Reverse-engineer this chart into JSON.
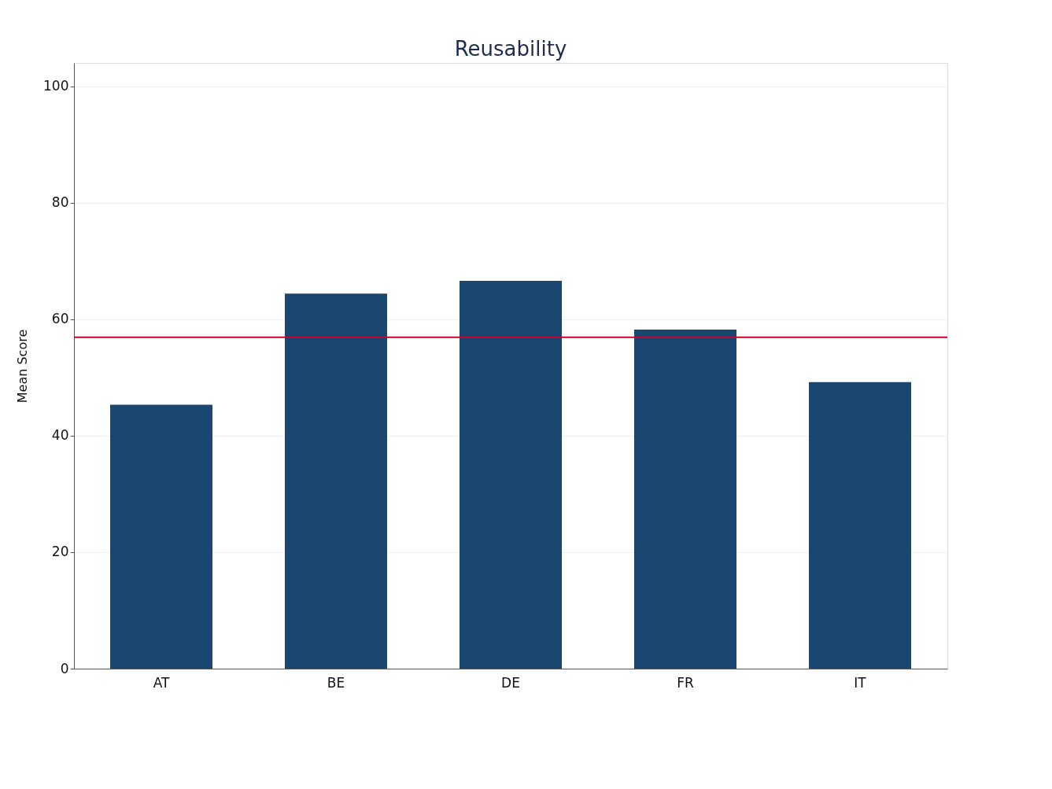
{
  "chart_data": {
    "type": "bar",
    "title": "Reusability",
    "ylabel": "Mean Score",
    "categories": [
      "AT",
      "BE",
      "DE",
      "FR",
      "IT"
    ],
    "values": [
      45.3,
      64.4,
      66.6,
      58.2,
      49.2
    ],
    "color": "#1a476f",
    "ylim": [
      0,
      104
    ],
    "yticks": [
      0,
      20,
      40,
      60,
      80,
      100
    ],
    "grid": "y",
    "ref_lines": [
      {
        "axis": "y",
        "value": 56.9,
        "color": "#c10534",
        "line_style": "solid"
      }
    ]
  }
}
